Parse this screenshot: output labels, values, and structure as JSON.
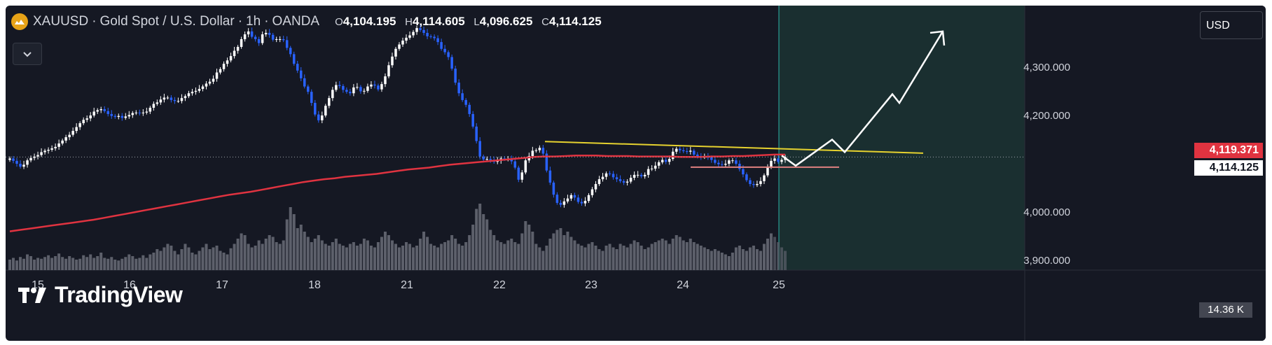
{
  "header": {
    "symbol": "XAUUSD",
    "sep1": "·",
    "name": "Gold Spot / U.S. Dollar",
    "sep2": "·",
    "interval": "1h",
    "sep3": "·",
    "source": "OANDA",
    "o_label": "O",
    "o_value": "4,104.195",
    "h_label": "H",
    "h_value": "4,114.605",
    "l_label": "L",
    "l_value": "4,096.625",
    "c_label": "C",
    "c_value": "4,114.125"
  },
  "currency": "USD",
  "price_labels": {
    "ma_value": "4,119.371",
    "last_price": "4,114.125"
  },
  "volume_label": "14.36 K",
  "watermark": "TradingView",
  "colors": {
    "background": "#151823",
    "bull": "#ffffff",
    "bear": "#2962ff",
    "ma": "#e03340",
    "trendline": "#e6d22f",
    "projection": "#ffffff",
    "forecast_zone": "#1a2f30",
    "volume": "#5d606b",
    "vertical_line": "#2bb5a8"
  },
  "chart_data": {
    "type": "candlestick",
    "xlabel": "",
    "ylabel": "",
    "x_ticks": [
      "15",
      "16",
      "17",
      "18",
      "21",
      "22",
      "23",
      "24",
      "25"
    ],
    "y_ticks": [
      "4,300.000",
      "4,200.000",
      "4,000.000",
      "3,900.000"
    ],
    "ylim": [
      3840,
      4420
    ],
    "series": [
      {
        "type": "close",
        "values": [
          4111,
          4106,
          4100,
          4094,
          4098,
          4107,
          4112,
          4115,
          4118,
          4124,
          4127,
          4129,
          4132,
          4135,
          4142,
          4148,
          4155,
          4160,
          4168,
          4176,
          4184,
          4191,
          4194,
          4200,
          4208,
          4211,
          4213,
          4209,
          4203,
          4199,
          4197,
          4199,
          4195,
          4198,
          4201,
          4205,
          4206,
          4205,
          4206,
          4208,
          4216,
          4224,
          4227,
          4233,
          4237,
          4237,
          4232,
          4230,
          4230,
          4236,
          4240,
          4246,
          4249,
          4251,
          4255,
          4260,
          4266,
          4270,
          4276,
          4289,
          4296,
          4307,
          4314,
          4323,
          4334,
          4342,
          4358,
          4368,
          4374,
          4363,
          4358,
          4350,
          4368,
          4371,
          4367,
          4357,
          4358,
          4358,
          4356,
          4340,
          4327,
          4307,
          4293,
          4277,
          4260,
          4249,
          4226,
          4202,
          4190,
          4200,
          4220,
          4236,
          4253,
          4263,
          4261,
          4253,
          4249,
          4246,
          4258,
          4259,
          4250,
          4251,
          4260,
          4264,
          4262,
          4254,
          4265,
          4281,
          4304,
          4322,
          4338,
          4347,
          4355,
          4361,
          4366,
          4373,
          4381,
          4377,
          4371,
          4364,
          4363,
          4360,
          4352,
          4338,
          4331,
          4321,
          4297,
          4268,
          4246,
          4232,
          4222,
          4203,
          4177,
          4147,
          4115,
          4109,
          4110,
          4108,
          4104,
          4106,
          4111,
          4110,
          4110,
          4105,
          4092,
          4067,
          4082,
          4107,
          4116,
          4127,
          4128,
          4133,
          4121,
          4086,
          4061,
          4036,
          4019,
          4015,
          4022,
          4028,
          4035,
          4030,
          4021,
          4018,
          4023,
          4035,
          4047,
          4058,
          4068,
          4073,
          4080,
          4079,
          4072,
          4068,
          4064,
          4061,
          4063,
          4071,
          4077,
          4077,
          4074,
          4077,
          4089,
          4090,
          4096,
          4103,
          4108,
          4104,
          4110,
          4125,
          4131,
          4128,
          4126,
          4125,
          4127,
          4119,
          4116,
          4114,
          4114,
          4113,
          4108,
          4102,
          4099,
          4098,
          4100,
          4107,
          4107,
          4100,
          4089,
          4078,
          4066,
          4058,
          4056,
          4058,
          4064,
          4076,
          4094,
          4106,
          4111,
          4104,
          4108,
          4114
        ]
      },
      {
        "type": "volume",
        "values": [
          12,
          14,
          11,
          15,
          13,
          18,
          16,
          12,
          14,
          13,
          15,
          17,
          14,
          16,
          19,
          15,
          13,
          16,
          14,
          12,
          13,
          17,
          15,
          18,
          14,
          16,
          20,
          14,
          13,
          15,
          12,
          11,
          13,
          15,
          18,
          16,
          13,
          14,
          17,
          14,
          18,
          20,
          24,
          22,
          26,
          30,
          28,
          22,
          18,
          24,
          30,
          26,
          20,
          18,
          22,
          26,
          30,
          24,
          26,
          28,
          22,
          20,
          18,
          25,
          30,
          36,
          42,
          40,
          30,
          26,
          28,
          34,
          30,
          36,
          40,
          38,
          32,
          30,
          34,
          58,
          72,
          64,
          48,
          52,
          44,
          38,
          32,
          36,
          40,
          34,
          30,
          28,
          32,
          36,
          30,
          28,
          26,
          30,
          32,
          28,
          30,
          36,
          34,
          28,
          26,
          32,
          38,
          44,
          40,
          34,
          30,
          26,
          28,
          32,
          30,
          26,
          28,
          36,
          44,
          38,
          30,
          28,
          26,
          30,
          32,
          34,
          40,
          36,
          30,
          28,
          32,
          40,
          52,
          70,
          76,
          64,
          58,
          46,
          40,
          34,
          32,
          30,
          34,
          36,
          32,
          30,
          42,
          56,
          52,
          44,
          30,
          26,
          22,
          28,
          36,
          42,
          46,
          48,
          40,
          44,
          38,
          34,
          30,
          28,
          26,
          30,
          32,
          28,
          24,
          22,
          28,
          30,
          26,
          24,
          30,
          28,
          26,
          30,
          34,
          32,
          28,
          24,
          26,
          30,
          32,
          34,
          36,
          34,
          30,
          36,
          40,
          38,
          34,
          32,
          36,
          32,
          30,
          28,
          26,
          24,
          22,
          24,
          22,
          20,
          18,
          16,
          20,
          26,
          28,
          24,
          22,
          26,
          28,
          24,
          22,
          30,
          36,
          42,
          38,
          32,
          26,
          22,
          18,
          14,
          9
        ]
      },
      {
        "type": "moving_average",
        "name": "",
        "values": [
          3960,
          3963,
          3966,
          3969,
          3972,
          3975,
          3978,
          3981,
          3984,
          3988,
          3992,
          3996,
          4000,
          4004,
          4008,
          4012,
          4016,
          4020,
          4024,
          4028,
          4032,
          4036,
          4039,
          4042,
          4046,
          4050,
          4054,
          4058,
          4062,
          4065,
          4068,
          4070,
          4073,
          4075,
          4077,
          4079,
          4082,
          4085,
          4088,
          4090,
          4092,
          4095,
          4098,
          4100,
          4102,
          4104,
          4106,
          4108,
          4110,
          4112,
          4114,
          4115,
          4115,
          4116,
          4117,
          4117,
          4117,
          4116,
          4116,
          4116,
          4115,
          4115,
          4115,
          4115,
          4114,
          4114,
          4114,
          4115,
          4115,
          4116,
          4116,
          4117,
          4118,
          4119,
          4119
        ]
      }
    ],
    "annotations": [
      {
        "type": "trendline",
        "from": {
          "x": "22",
          "y": 4146
        },
        "to": {
          "x": "26",
          "y": 4122
        }
      },
      {
        "type": "horizontal_segment",
        "y": 4093,
        "color": "#e08080"
      },
      {
        "type": "projection_path",
        "points": [
          4117,
          4096,
          4134,
          4112,
          4150,
          4124,
          4244,
          4226,
          4374
        ]
      }
    ]
  }
}
